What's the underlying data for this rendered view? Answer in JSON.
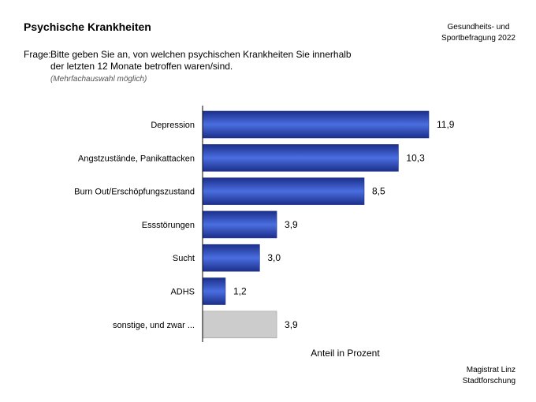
{
  "header": {
    "title": "Psychische Krankheiten",
    "source_line1": "Gesundheits- und",
    "source_line2": "Sportbefragung 2022"
  },
  "question": {
    "label": "Frage:",
    "line1": "Bitte geben Sie an, von welchen psychischen Krankheiten Sie innerhalb",
    "line2": "der letzten 12 Monate betroffen waren/sind.",
    "note": "(Mehrfachauswahl möglich)"
  },
  "footer": {
    "line1": "Magistrat Linz",
    "line2": "Stadtforschung"
  },
  "colors": {
    "bar_dark": "#1c2f8a",
    "bar_light": "#4a6ee0",
    "bar_other": "#cccccc"
  },
  "chart_data": {
    "type": "bar",
    "orientation": "horizontal",
    "title": "Psychische Krankheiten",
    "xlabel": "Anteil in Prozent",
    "ylabel": "",
    "xlim": [
      0,
      11.9
    ],
    "grid": false,
    "categories": [
      "Depression",
      "Angstzustände, Panikattacken",
      "Burn Out/Erschöpfungszustand",
      "Essstörungen",
      "Sucht",
      "ADHS",
      "sonstige, und zwar ..."
    ],
    "values": [
      11.9,
      10.3,
      8.5,
      3.9,
      3.0,
      1.2,
      3.9
    ],
    "value_labels": [
      "11,9",
      "10,3",
      "8,5",
      "3,9",
      "3,0",
      "1,2",
      "3,9"
    ],
    "highlight_gray": [
      false,
      false,
      false,
      false,
      false,
      false,
      true
    ]
  }
}
